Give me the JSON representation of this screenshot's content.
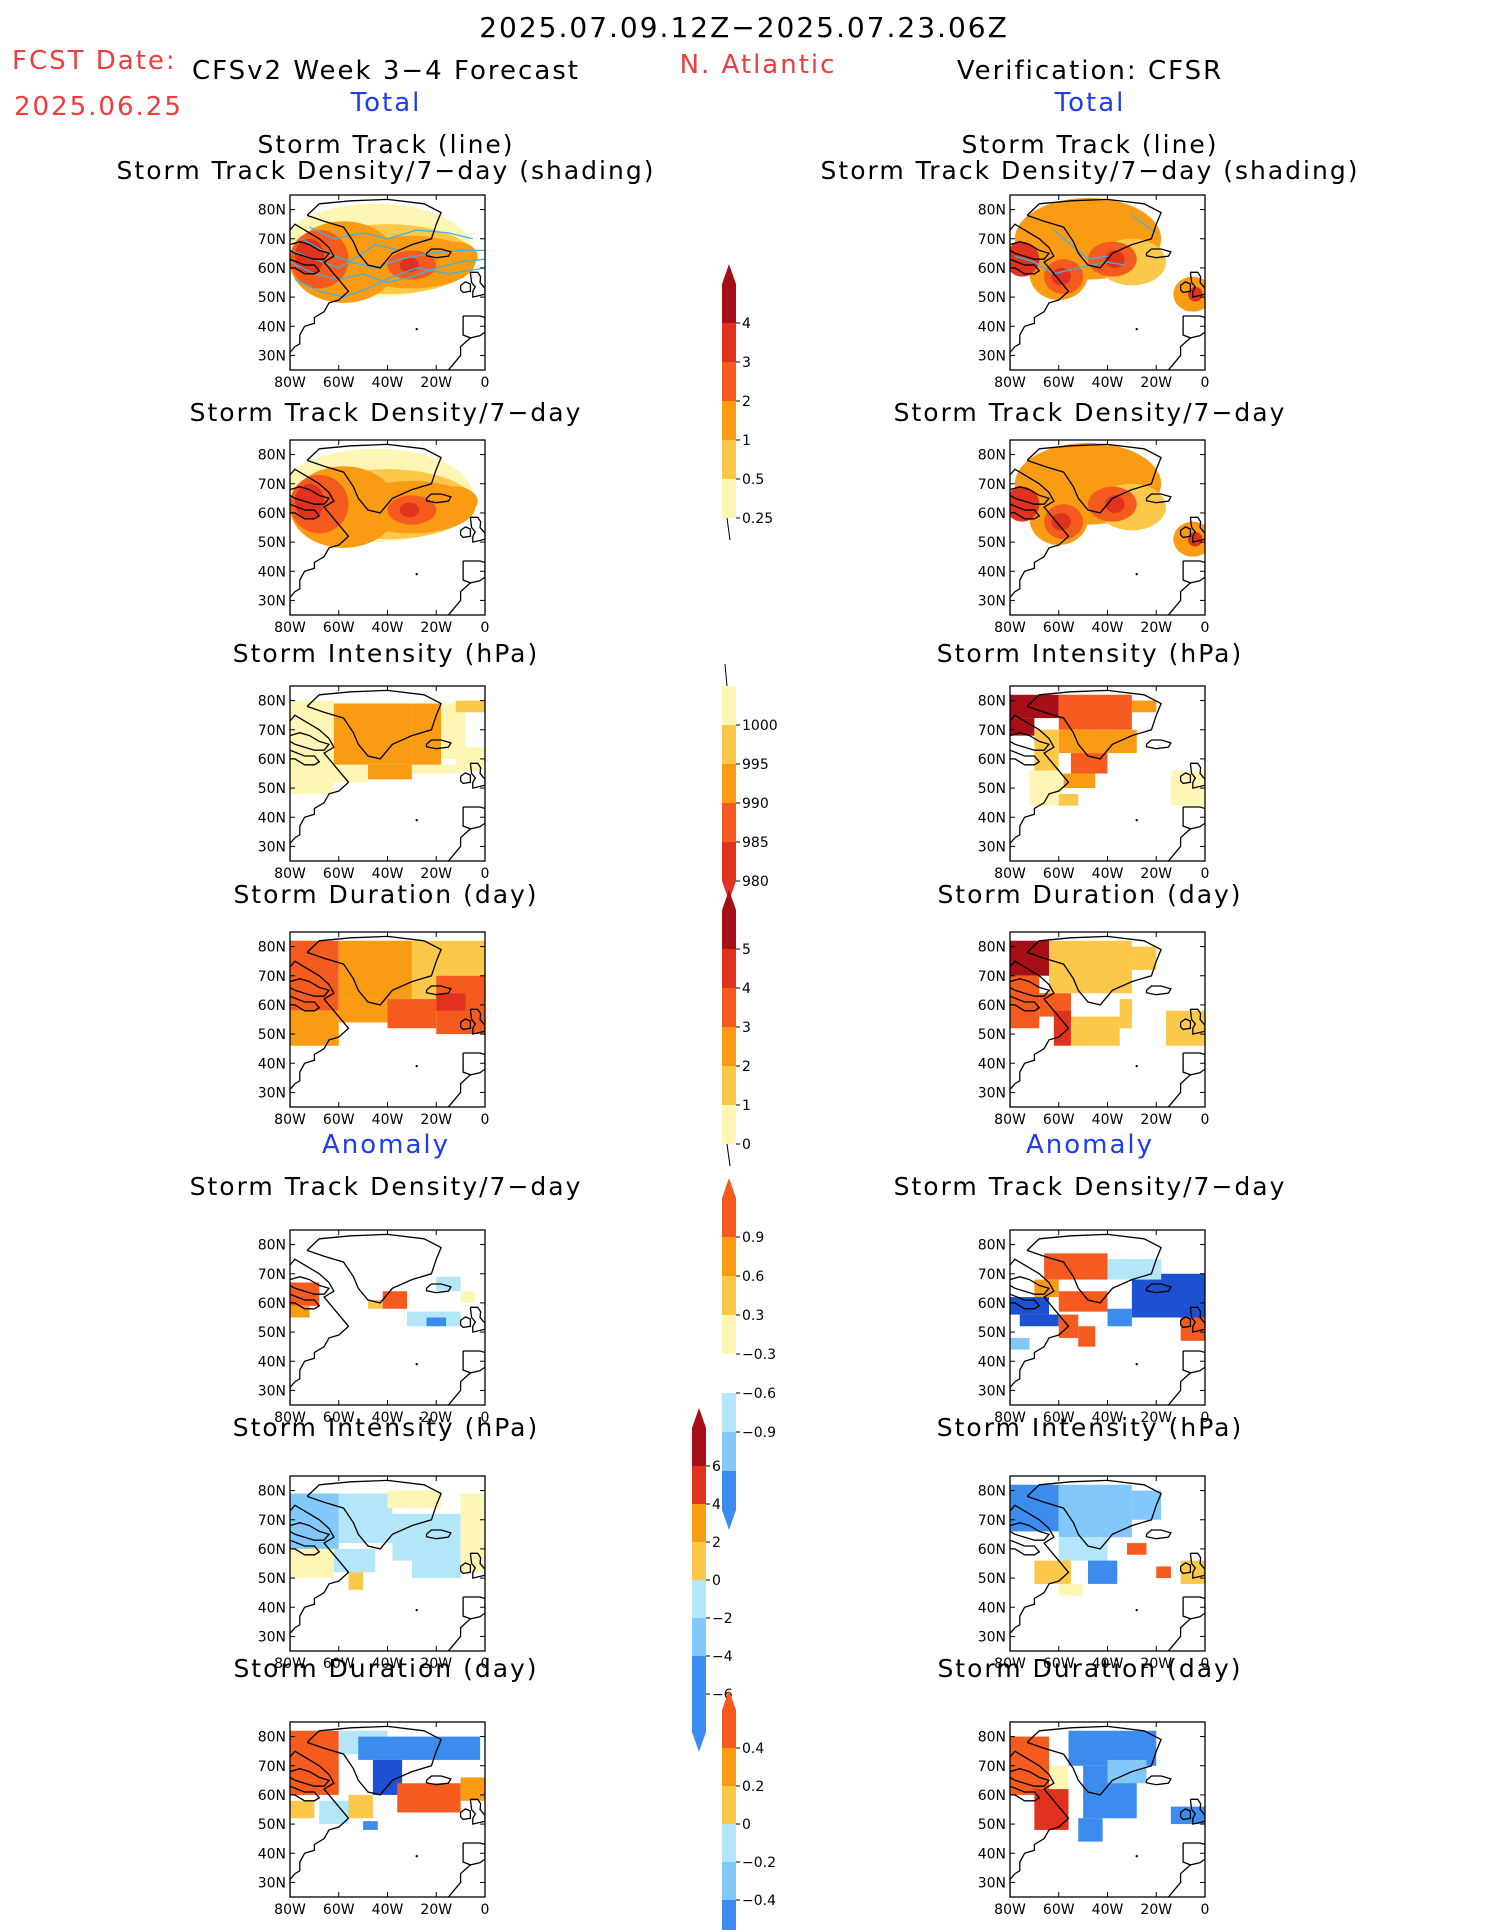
{
  "header": {
    "period": "2025.07.09.12Z−2025.07.23.06Z",
    "fcst_label": "FCST Date:",
    "fcst_date": "2025.06.25",
    "forecast_title": "CFSv2 Week 3−4 Forecast",
    "region": "N. Atlantic",
    "verification": "Verification: CFSR",
    "total_left": "Total",
    "total_right": "Total",
    "anomaly_left": "Anomaly",
    "anomaly_right": "Anomaly"
  },
  "panel_titles": {
    "track_line": "Storm Track (line)",
    "track_shading": "Storm Track Density/7−day (shading)",
    "density": "Storm Track Density/7−day",
    "intensity": "Storm Intensity (hPa)",
    "duration": "Storm Duration (day)"
  },
  "axes": {
    "x_ticks": [
      "80W",
      "60W",
      "40W",
      "20W",
      "0"
    ],
    "y_ticks": [
      "80N",
      "70N",
      "60N",
      "50N",
      "40N",
      "30N"
    ]
  },
  "colorbars": {
    "density": [
      "4",
      "3",
      "2",
      "1",
      "0.5",
      "0.25"
    ],
    "intensity": [
      "1000",
      "995",
      "990",
      "985",
      "980"
    ],
    "duration": [
      "5",
      "4",
      "3",
      "2",
      "1",
      "0"
    ],
    "density_anom": [
      "0.9",
      "0.6",
      "0.3",
      "−0.3",
      "−0.6",
      "−0.9"
    ],
    "intensity_anom": [
      "6",
      "4",
      "2",
      "0",
      "−2",
      "−4",
      "−6"
    ],
    "duration_anom": [
      "0.4",
      "0.2",
      "0",
      "−0.2",
      "−0.4"
    ]
  },
  "colors": {
    "dark_red": "#a50f15",
    "red": "#e0321e",
    "red_orange": "#f55a1e",
    "orange": "#fa9b14",
    "light_orange": "#fcc84a",
    "pale_yellow": "#fff5b4",
    "pale_blue": "#b4e6fa",
    "light_blue": "#82c8fa",
    "mid_blue": "#3c8cf0",
    "dark_blue": "#1e50d2",
    "track_line": "#3cb4e6",
    "coast": "#000000"
  }
}
